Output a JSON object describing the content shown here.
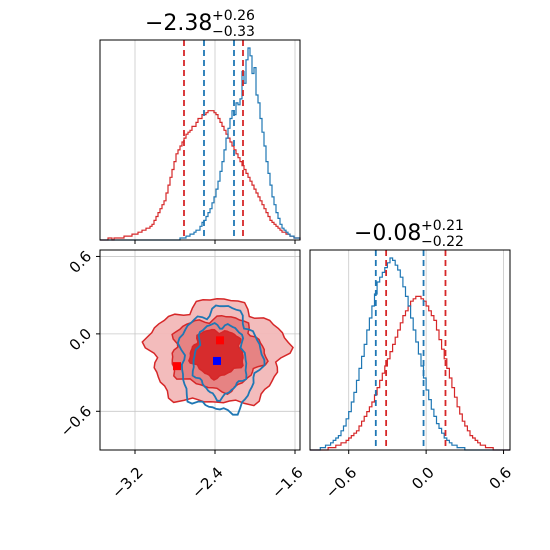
{
  "colors": {
    "blue": "#1f77b4",
    "red": "#d62728",
    "grid": "#c8c8c8",
    "red_fill_light": "#f2b8b8",
    "red_fill_mid": "#e57f7f",
    "red_fill_dark": "#d62728"
  },
  "chart_data": {
    "type": "corner",
    "parameters": [
      {
        "title": {
          "median": "−2.38",
          "plus": "+0.26",
          "minus": "−0.33"
        },
        "range": [
          -3.55,
          -1.55
        ],
        "ticks": [
          -3.2,
          -2.4,
          -1.6
        ],
        "tick_labels": [
          "−3.2",
          "−2.4",
          "−1.6"
        ],
        "blue_hist": {
          "bin_edges_start": -3.55,
          "bin_width": 0.02,
          "counts": [
            0,
            0,
            0,
            0,
            0,
            0,
            0,
            0,
            0,
            0,
            0,
            0,
            0,
            0,
            0,
            0,
            0,
            0,
            0,
            0,
            0,
            0,
            0,
            0,
            0,
            0,
            0,
            0,
            0,
            0,
            0,
            0,
            0,
            0,
            0,
            0,
            0,
            0,
            0,
            0,
            1,
            1,
            1,
            2,
            2,
            3,
            3,
            4,
            5,
            5,
            7,
            9,
            10,
            12,
            14,
            16,
            19,
            22,
            26,
            30,
            35,
            40,
            46,
            52,
            57,
            62,
            66,
            64,
            70,
            69,
            72,
            86,
            80,
            92,
            98,
            94,
            85,
            88,
            74,
            70,
            62,
            55,
            48,
            40,
            34,
            28,
            22,
            18,
            14,
            11,
            8,
            6,
            5,
            4,
            3,
            2,
            2,
            1,
            1,
            1,
            0,
            0
          ]
        },
        "red_hist": {
          "bin_edges_start": -3.55,
          "bin_width": 0.02,
          "counts": [
            0,
            0,
            0,
            0,
            1,
            1,
            0,
            1,
            1,
            1,
            1,
            1,
            2,
            2,
            2,
            2,
            3,
            3,
            3,
            4,
            4,
            5,
            5,
            6,
            6,
            7,
            8,
            10,
            12,
            14,
            16,
            18,
            20,
            24,
            28,
            32,
            36,
            40,
            44,
            46,
            48,
            50,
            52,
            54,
            55,
            56,
            58,
            58,
            60,
            62,
            62,
            64,
            64,
            65,
            66,
            66,
            66,
            65,
            64,
            62,
            60,
            58,
            56,
            54,
            52,
            50,
            48,
            46,
            44,
            42,
            40,
            38,
            36,
            34,
            32,
            30,
            28,
            26,
            24,
            22,
            20,
            18,
            16,
            14,
            12,
            10,
            9,
            8,
            7,
            6,
            5,
            4,
            4,
            3,
            3,
            2,
            2,
            1,
            1,
            1,
            0,
            0
          ]
        },
        "blue_quantiles": [
          -2.51,
          -2.21
        ],
        "red_quantiles": [
          -2.71,
          -2.12
        ]
      },
      {
        "title": {
          "median": "−0.08",
          "plus": "+0.21",
          "minus": "−0.22"
        },
        "range": [
          -0.9,
          0.65
        ],
        "ticks": [
          -0.6,
          0.0,
          0.6
        ],
        "tick_labels": [
          "−0.6",
          "0.0",
          "0.6"
        ],
        "blue_hist": {
          "bin_edges_start": -0.9,
          "bin_width": 0.02,
          "counts": [
            0,
            0,
            0,
            0,
            1,
            1,
            2,
            2,
            3,
            4,
            5,
            6,
            8,
            10,
            13,
            16,
            20,
            24,
            29,
            34,
            39,
            44,
            50,
            55,
            60,
            65,
            70,
            72,
            74,
            76,
            78,
            80,
            79,
            77,
            75,
            72,
            68,
            64,
            60,
            55,
            50,
            45,
            40,
            35,
            30,
            25,
            21,
            17,
            14,
            11,
            9,
            7,
            5,
            4,
            3,
            2,
            2,
            1,
            1,
            1,
            0,
            0,
            0,
            0,
            0,
            0,
            0,
            0,
            0,
            0,
            0,
            0,
            0,
            0,
            0,
            0,
            0,
            0
          ]
        },
        "red_hist": {
          "bin_edges_start": -0.9,
          "bin_width": 0.02,
          "counts": [
            0,
            0,
            0,
            0,
            0,
            0,
            0,
            1,
            1,
            1,
            2,
            2,
            3,
            3,
            4,
            5,
            6,
            7,
            8,
            10,
            12,
            14,
            16,
            18,
            20,
            23,
            26,
            29,
            32,
            35,
            38,
            41,
            44,
            47,
            50,
            53,
            56,
            58,
            60,
            62,
            63,
            64,
            64,
            63,
            62,
            60,
            58,
            56,
            54,
            50,
            46,
            42,
            38,
            34,
            30,
            26,
            22,
            18,
            15,
            12,
            10,
            8,
            6,
            5,
            4,
            3,
            2,
            2,
            1,
            1,
            1,
            0,
            0,
            0,
            0,
            0,
            0,
            0
          ]
        },
        "blue_quantiles": [
          -0.39,
          -0.02
        ],
        "red_quantiles": [
          -0.31,
          0.15
        ]
      }
    ],
    "joint": {
      "x_range": [
        -3.55,
        -1.55
      ],
      "y_range": [
        -0.9,
        0.65
      ],
      "x_ticks": [
        -3.2,
        -2.4,
        -1.6
      ],
      "y_ticks": [
        -0.6,
        0.0,
        0.6
      ],
      "y_tick_labels": [
        "−0.6",
        "0.0",
        "0.6"
      ],
      "red_contours": [
        {
          "level": "outer",
          "center": [
            -2.38,
            -0.15
          ],
          "rx": 0.68,
          "ry": 0.4
        },
        {
          "level": "middle",
          "center": [
            -2.38,
            -0.15
          ],
          "rx": 0.46,
          "ry": 0.28
        },
        {
          "level": "inner",
          "center": [
            -2.38,
            -0.15
          ],
          "rx": 0.26,
          "ry": 0.18
        }
      ],
      "blue_contours": [
        {
          "level": "outer",
          "center": [
            -2.35,
            -0.2
          ],
          "rx": 0.4,
          "ry": 0.4
        },
        {
          "level": "inner",
          "center": [
            -2.35,
            -0.2
          ],
          "rx": 0.26,
          "ry": 0.28
        }
      ],
      "markers": [
        {
          "series": "red",
          "x": -2.78,
          "y": -0.25
        },
        {
          "series": "red",
          "x": -2.35,
          "y": -0.05
        },
        {
          "series": "blue",
          "x": -2.38,
          "y": -0.21
        }
      ]
    },
    "grid": true
  }
}
